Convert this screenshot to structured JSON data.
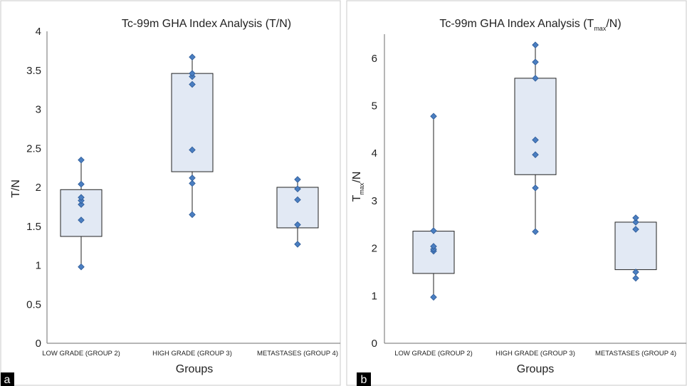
{
  "chart_data": [
    {
      "type": "box",
      "panel_label": "a",
      "title": "Tc-99m GHA Index Analysis (T/N)",
      "title_parts": [],
      "xlabel": "Groups",
      "ylabel": "T/N",
      "ylabel_parts": [],
      "ylim": [
        0,
        4
      ],
      "yticks": [
        0,
        0.5,
        1,
        1.5,
        2,
        2.5,
        3,
        3.5,
        4
      ],
      "ytick_labels": [
        "0",
        "0.5",
        "1",
        "1.5",
        "2",
        "2.5",
        "3",
        "3.5",
        "4"
      ],
      "categories": [
        "LOW GRADE (GROUP 2)",
        "HIGH GRADE (GROUP 3)",
        "METASTASES (GROUP 4)"
      ],
      "boxes": [
        {
          "q1": 1.37,
          "q3": 1.97,
          "min": 0.98,
          "max": 2.35,
          "points": [
            0.98,
            1.58,
            1.78,
            1.83,
            1.87,
            2.04,
            2.35
          ]
        },
        {
          "q1": 2.2,
          "q3": 3.46,
          "min": 1.65,
          "max": 3.67,
          "points": [
            1.65,
            2.05,
            2.12,
            2.48,
            3.32,
            3.42,
            3.46,
            3.67
          ]
        },
        {
          "q1": 1.48,
          "q3": 2.0,
          "min": 1.27,
          "max": 2.1,
          "points": [
            1.27,
            1.52,
            1.84,
            1.98,
            2.1
          ]
        }
      ]
    },
    {
      "type": "box",
      "panel_label": "b",
      "title": "",
      "title_parts": [
        "Tc-99m GHA Index Analysis (T",
        "max",
        "/N)"
      ],
      "xlabel": "Groups",
      "ylabel": "",
      "ylabel_parts": [
        "T",
        "max",
        "/N"
      ],
      "ylim": [
        0,
        6.5
      ],
      "yticks": [
        0,
        1,
        2,
        3,
        4,
        5,
        6
      ],
      "ytick_labels": [
        "0",
        "1",
        "2",
        "3",
        "4",
        "5",
        "6"
      ],
      "categories": [
        "LOW GRADE (GROUP 2)",
        "HIGH GRADE (GROUP 3)",
        "METASTASES (GROUP 4)"
      ],
      "boxes": [
        {
          "q1": 1.47,
          "q3": 2.36,
          "min": 0.97,
          "max": 4.78,
          "points": [
            0.97,
            1.94,
            1.98,
            2.04,
            2.37,
            4.78
          ]
        },
        {
          "q1": 3.55,
          "q3": 5.58,
          "min": 2.35,
          "max": 6.28,
          "points": [
            2.35,
            3.27,
            3.97,
            4.28,
            5.58,
            5.92,
            6.28
          ]
        },
        {
          "q1": 1.55,
          "q3": 2.55,
          "min": 1.37,
          "max": 2.64,
          "points": [
            1.37,
            1.5,
            2.4,
            2.55,
            2.64
          ]
        }
      ]
    }
  ]
}
